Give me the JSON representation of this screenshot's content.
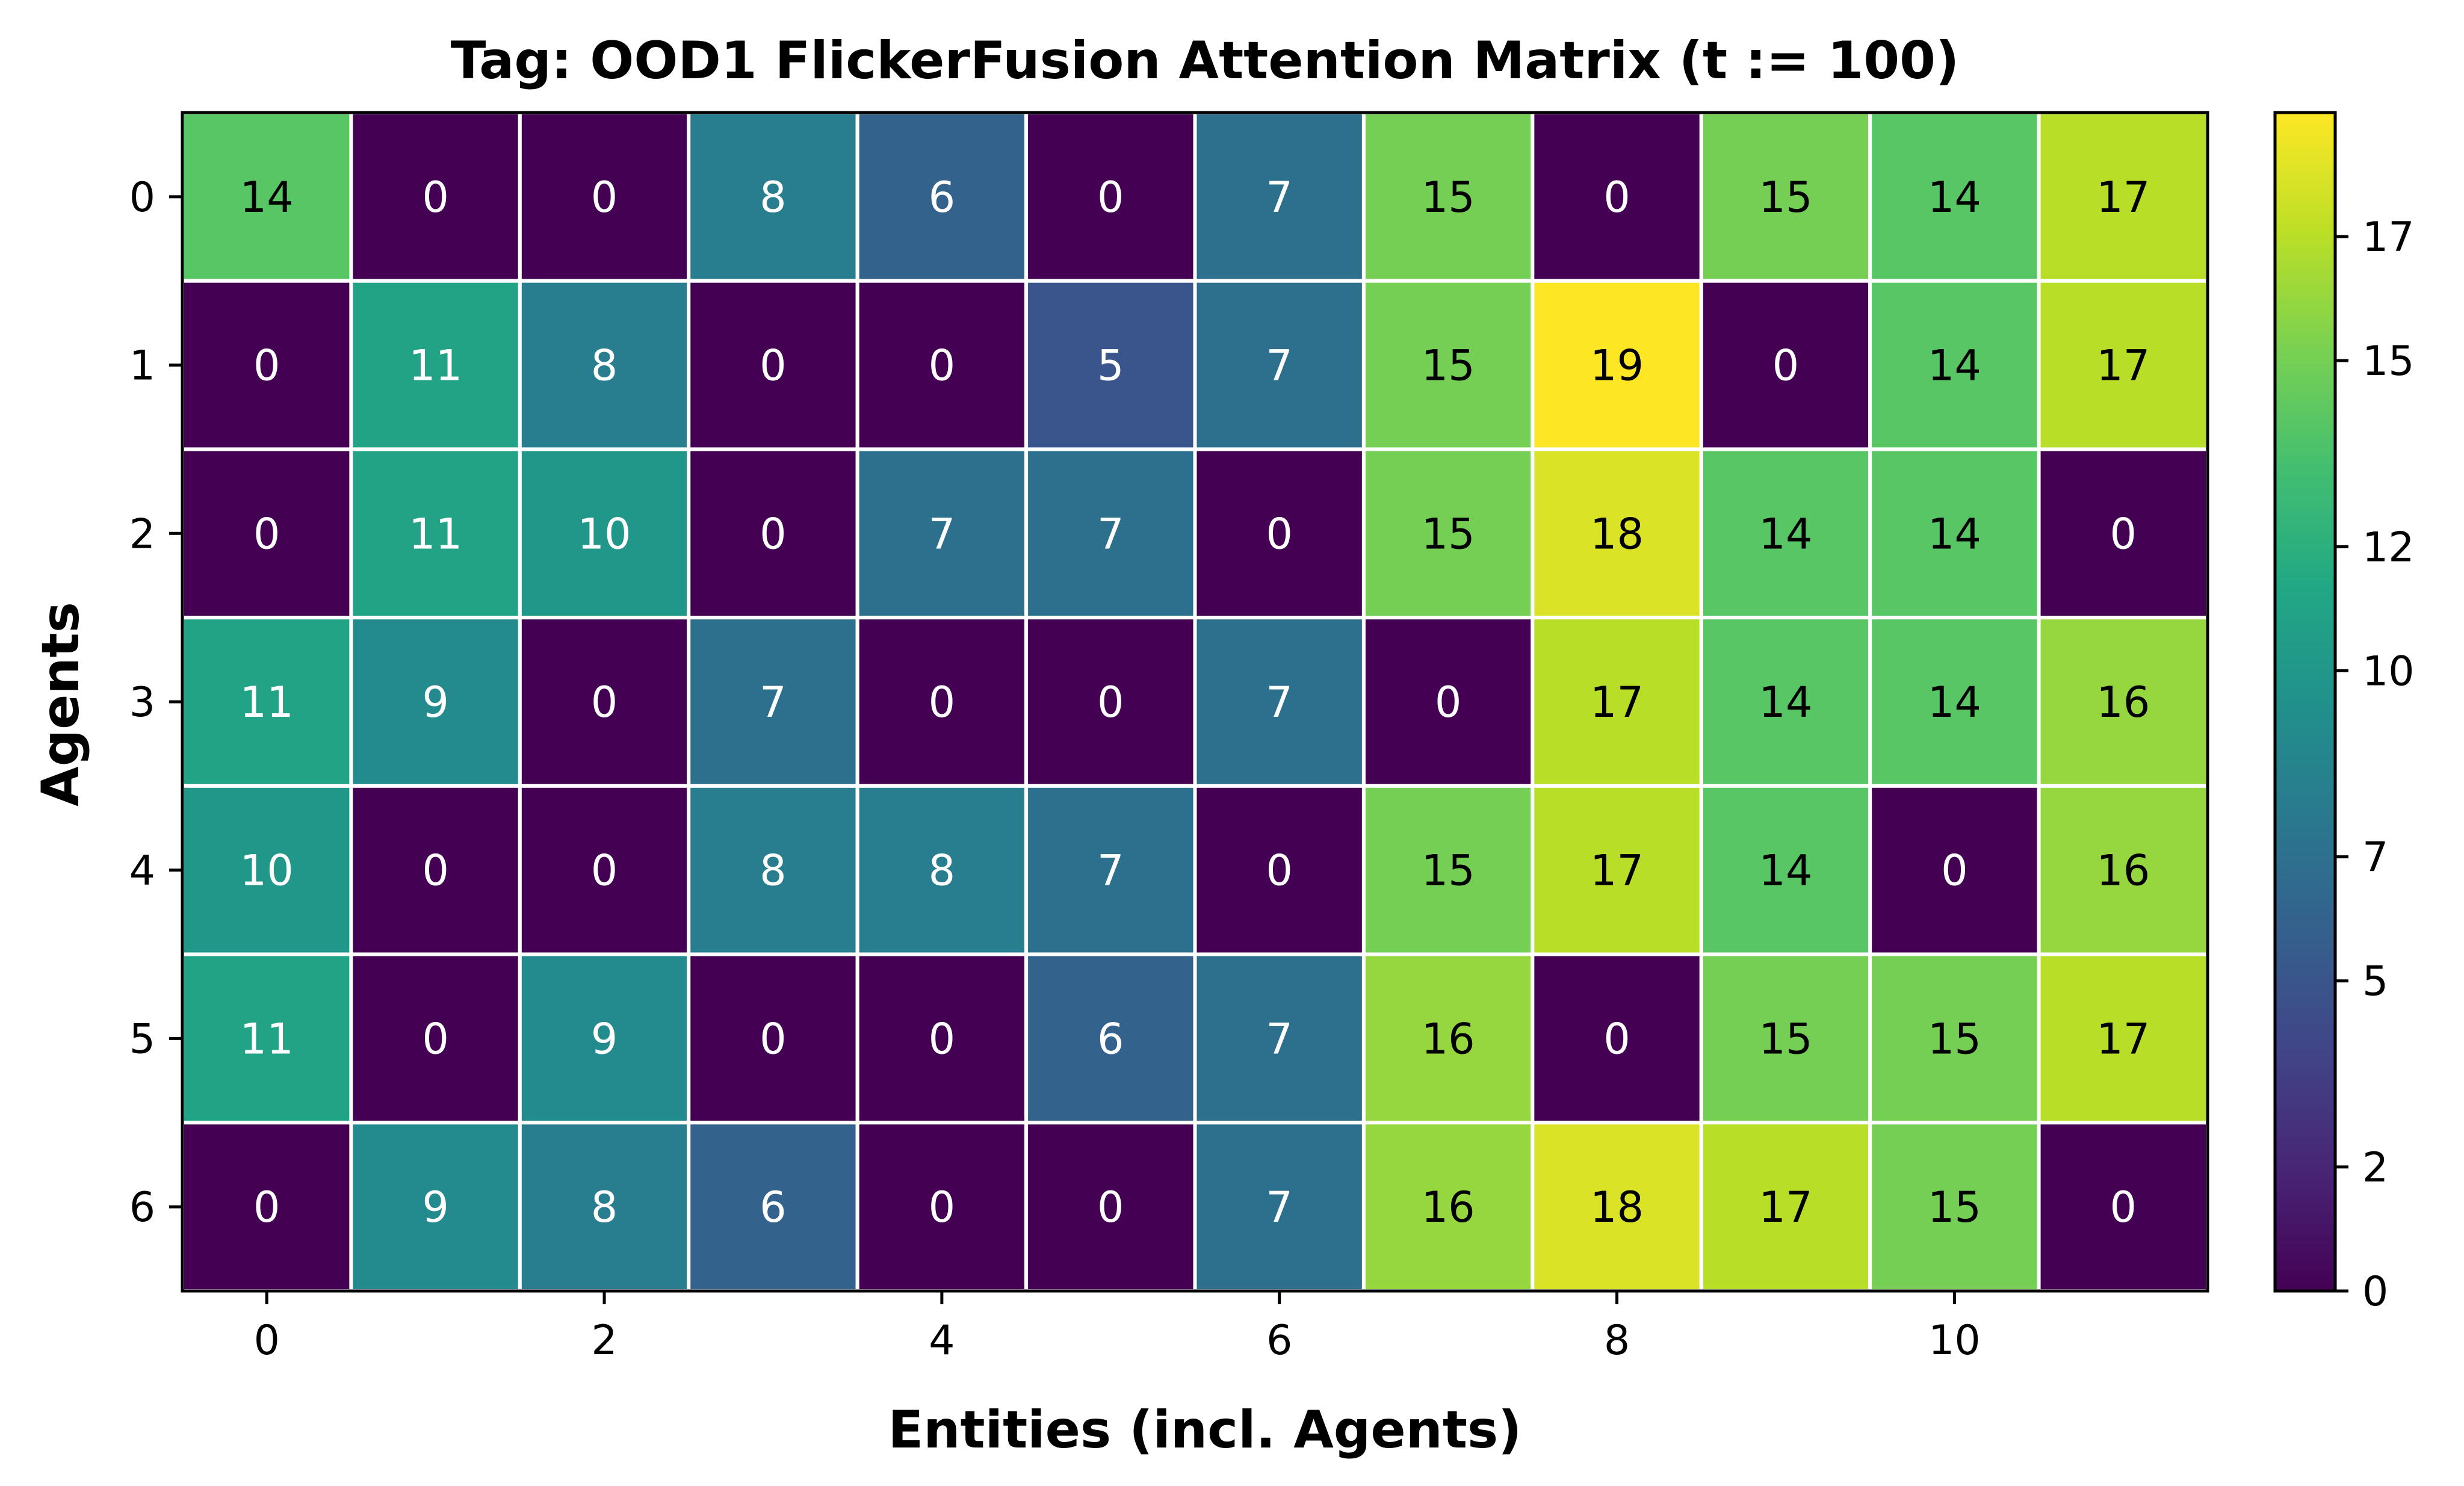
{
  "chart_data": {
    "type": "heatmap",
    "title": "Tag: OOD1 FlickerFusion Attention Matrix (t := 100)",
    "xlabel": "Entities (incl. Agents)",
    "ylabel": "Agents",
    "x_ticks": [
      0,
      2,
      4,
      6,
      8,
      10
    ],
    "y_ticks": [
      0,
      1,
      2,
      3,
      4,
      5,
      6
    ],
    "colorbar": {
      "colormap": "viridis",
      "min": 0,
      "max": 19,
      "ticks": [
        0,
        2,
        5,
        7,
        10,
        12,
        15,
        17
      ]
    },
    "rows": [
      0,
      1,
      2,
      3,
      4,
      5,
      6
    ],
    "cols": [
      0,
      1,
      2,
      3,
      4,
      5,
      6,
      7,
      8,
      9,
      10,
      11
    ],
    "values": [
      [
        14,
        0,
        0,
        8,
        6,
        0,
        7,
        15,
        0,
        15,
        14,
        17
      ],
      [
        0,
        11,
        8,
        0,
        0,
        5,
        7,
        15,
        19,
        0,
        14,
        17
      ],
      [
        0,
        11,
        10,
        0,
        7,
        7,
        0,
        15,
        18,
        14,
        14,
        0
      ],
      [
        11,
        9,
        0,
        7,
        0,
        0,
        7,
        0,
        17,
        14,
        14,
        16
      ],
      [
        10,
        0,
        0,
        8,
        8,
        7,
        0,
        15,
        17,
        14,
        0,
        16
      ],
      [
        11,
        0,
        9,
        0,
        0,
        6,
        7,
        16,
        0,
        15,
        15,
        17
      ],
      [
        0,
        9,
        8,
        6,
        0,
        0,
        7,
        16,
        18,
        17,
        15,
        0
      ]
    ],
    "grid": true,
    "cell_border_color": "#ffffff"
  }
}
